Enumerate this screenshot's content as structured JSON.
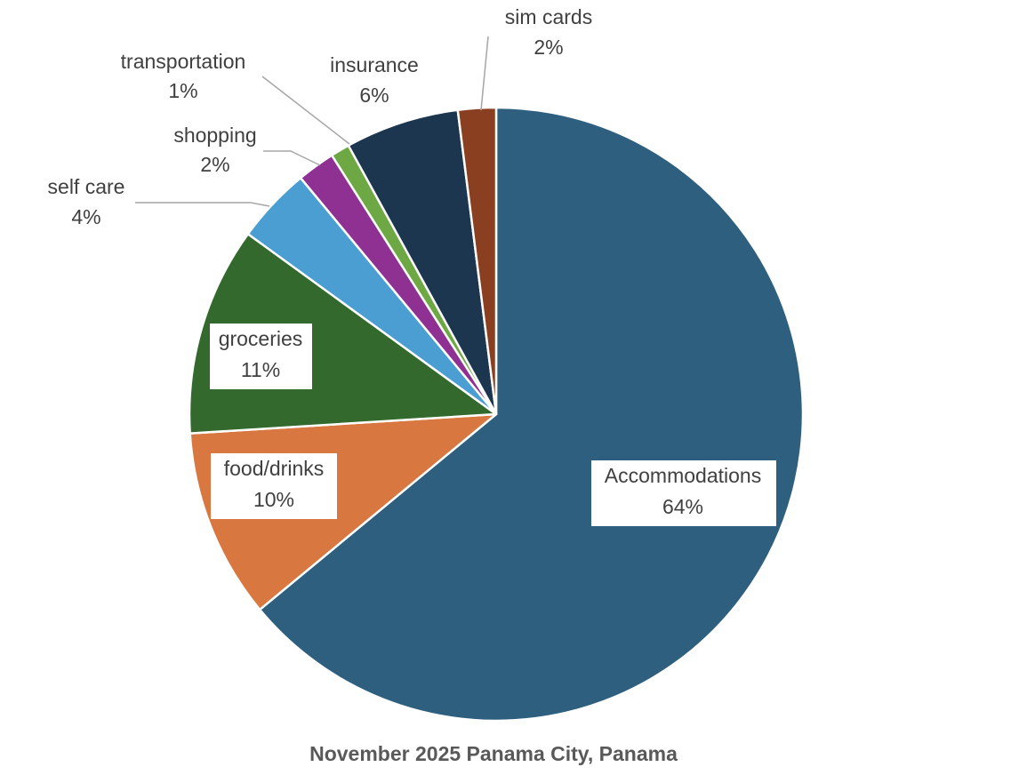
{
  "chart_data": {
    "type": "pie",
    "title": "November 2025 Panama City, Panama",
    "slices": [
      {
        "label": "Accommodations",
        "value": 64,
        "value_label": "64%",
        "color": "#2e5f7f"
      },
      {
        "label": "food/drinks",
        "value": 10,
        "value_label": "10%",
        "color": "#d87740"
      },
      {
        "label": "groceries",
        "value": 11,
        "value_label": "11%",
        "color": "#33692d"
      },
      {
        "label": "self care",
        "value": 4,
        "value_label": "4%",
        "color": "#4a9ed2"
      },
      {
        "label": "shopping",
        "value": 2,
        "value_label": "2%",
        "color": "#8f3192"
      },
      {
        "label": "transportation",
        "value": 1,
        "value_label": "1%",
        "color": "#6da844"
      },
      {
        "label": "insurance",
        "value": 6,
        "value_label": "6%",
        "color": "#1d364f"
      },
      {
        "label": "sim cards",
        "value": 2,
        "value_label": "2%",
        "color": "#8a4020"
      }
    ]
  }
}
